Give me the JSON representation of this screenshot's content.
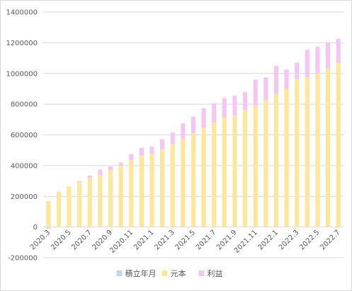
{
  "chart_data": {
    "type": "bar",
    "stacked": true,
    "categories": [
      "2020.3",
      "2020.4",
      "2020.5",
      "2020.6",
      "2020.7",
      "2020.8",
      "2020.9",
      "2020.10",
      "2020.11",
      "2020.12",
      "2021.1",
      "2021.2",
      "2021.3",
      "2021.4",
      "2021.5",
      "2021.6",
      "2021.7",
      "2021.8",
      "2021.9",
      "2021.10",
      "2021.11",
      "2021.12",
      "2022.1",
      "2022.2",
      "2022.3",
      "2022.4",
      "2022.5",
      "2022.6",
      "2022.7"
    ],
    "x_tick_labels": [
      "2020.3",
      "2020.5",
      "2020.7",
      "2020.9",
      "2020.11",
      "2021.1",
      "2021.3",
      "2021.5",
      "2021.7",
      "2021.9",
      "2021.11",
      "2022.1",
      "2022.3",
      "2022.5",
      "2022.7"
    ],
    "series": [
      {
        "name": "積立年月",
        "color": "#bdd7ee",
        "values": [
          0,
          0,
          0,
          0,
          0,
          0,
          0,
          0,
          0,
          0,
          0,
          0,
          0,
          0,
          0,
          0,
          0,
          0,
          0,
          0,
          0,
          0,
          0,
          0,
          0,
          0,
          0,
          0,
          0
        ]
      },
      {
        "name": "元本",
        "color": "#ffe699",
        "values": [
          170000,
          230000,
          265000,
          295000,
          320000,
          340000,
          370000,
          400000,
          435000,
          465000,
          475000,
          505000,
          540000,
          575000,
          610000,
          645000,
          680000,
          715000,
          725000,
          760000,
          790000,
          825000,
          865000,
          900000,
          965000,
          975000,
          1000000,
          1035000,
          1070000
        ]
      },
      {
        "name": "利益",
        "color": "#f5c6f5",
        "values": [
          -10000,
          0,
          0,
          5000,
          15000,
          35000,
          25000,
          20000,
          40000,
          50000,
          50000,
          65000,
          75000,
          100000,
          110000,
          130000,
          125000,
          125000,
          130000,
          120000,
          170000,
          150000,
          185000,
          125000,
          105000,
          180000,
          175000,
          165000,
          155000
        ]
      }
    ],
    "y_ticks": [
      -200000,
      0,
      200000,
      400000,
      600000,
      800000,
      1000000,
      1200000,
      1400000
    ],
    "ylim": [
      -200000,
      1400000
    ],
    "grid": true,
    "legend_position": "bottom"
  }
}
